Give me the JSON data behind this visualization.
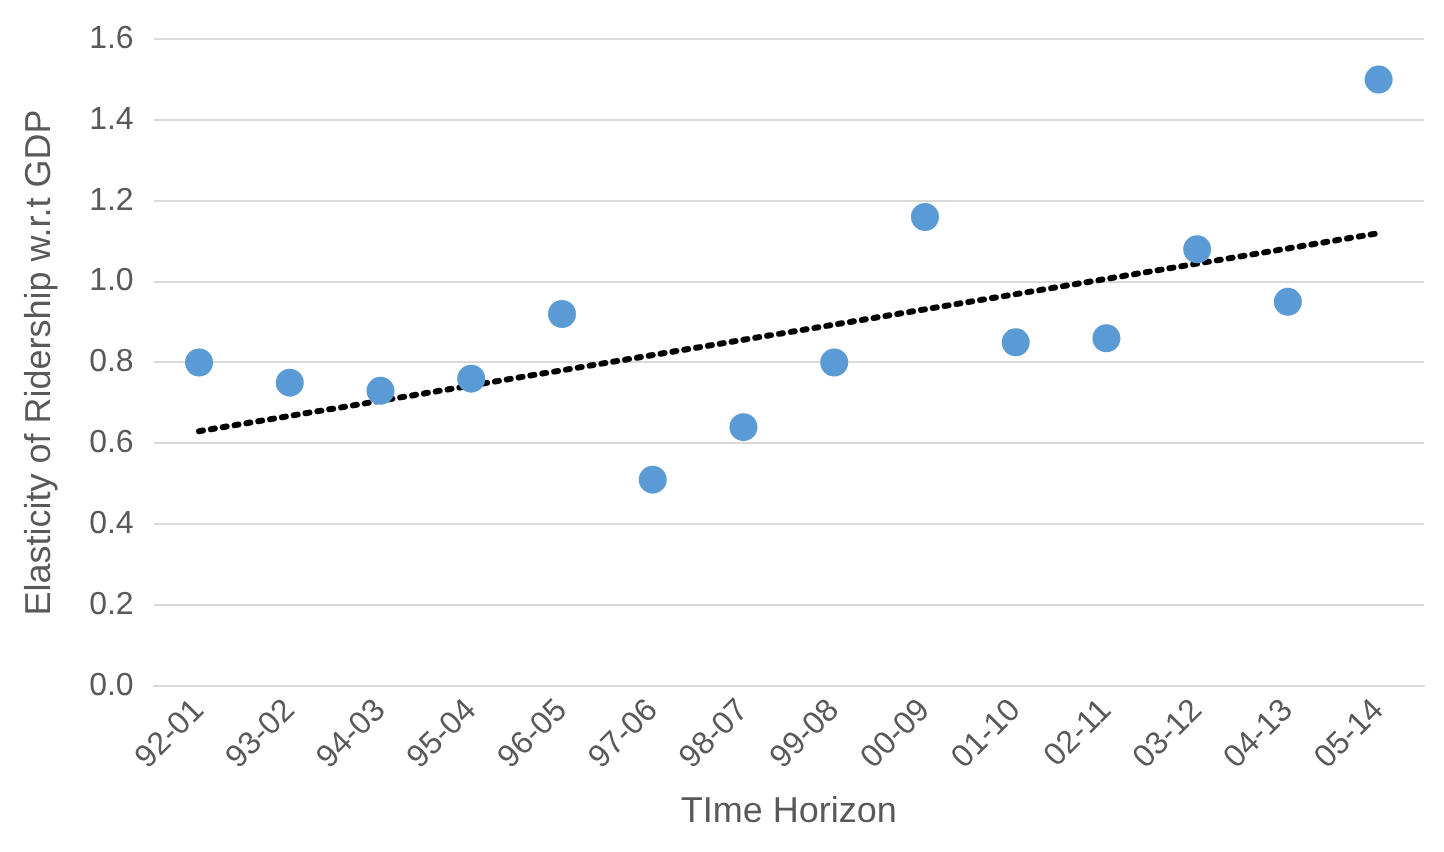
{
  "chart_data": {
    "type": "scatter",
    "xlabel": "TIme Horizon",
    "ylabel": "Elasticity of Ridership w.r.t GDP",
    "categories": [
      "92-01",
      "93-02",
      "94-03",
      "95-04",
      "96-05",
      "97-06",
      "98-07",
      "99-08",
      "00-09",
      "01-10",
      "02-11",
      "03-12",
      "04-13",
      "05-14"
    ],
    "series": [
      {
        "color": "#5b9bd5",
        "marker": "circle",
        "values": [
          0.8,
          0.75,
          0.73,
          0.76,
          0.92,
          0.51,
          0.64,
          0.8,
          1.16,
          0.85,
          0.86,
          1.08,
          0.95,
          1.5
        ]
      },
      {
        "type": "line",
        "color": "#000000",
        "marker": "none",
        "line_style": "dotted",
        "x": [
          "92-01",
          "05-14"
        ],
        "values": [
          0.63,
          1.12
        ]
      }
    ],
    "ylim": [
      0,
      1.6
    ],
    "yticks": [
      {
        "value": 0,
        "label": "0.0"
      },
      0.2,
      0.4,
      0.6,
      0.8,
      {
        "value": 1,
        "label": "1.0"
      },
      1.2,
      1.4,
      1.6
    ],
    "grid": "y",
    "legend": false
  }
}
